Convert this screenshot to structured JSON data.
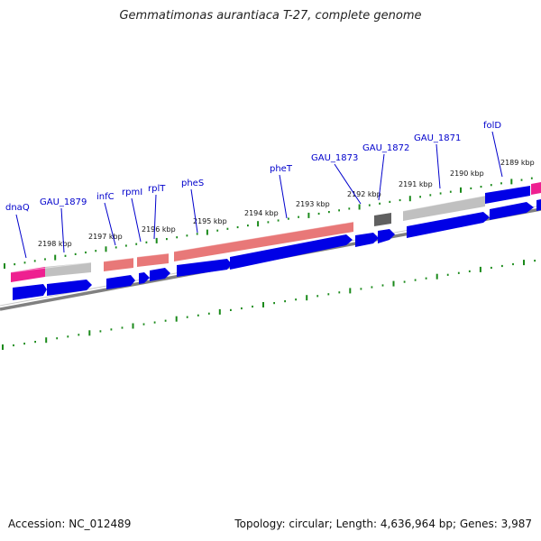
{
  "title": "Gemmatimonas aurantiaca T-27, complete genome",
  "footer": {
    "accession": "Accession: NC_012489",
    "summary": "Topology: circular; Length: 4,636,964 bp; Genes: 3,987"
  },
  "colors": {
    "cds": "#0000e6",
    "rrna": "#e87878",
    "trna": "#ee2090",
    "misc": "#c0c0c0",
    "dark": "#606060",
    "backbone": "#808080",
    "ticks": "#1a8a1a",
    "gene_label": "#0000cc"
  },
  "kbp_labels": [
    "2198 kbp",
    "2197 kbp",
    "2196 kbp",
    "2195 kbp",
    "2194 kbp",
    "2193 kbp",
    "2192 kbp",
    "2191 kbp",
    "2190 kbp",
    "2189 kbp"
  ],
  "gene_labels": [
    "dnaQ",
    "GAU_1879",
    "infC",
    "rpmI",
    "rplT",
    "pheS",
    "pheT",
    "GAU_1873",
    "GAU_1872",
    "GAU_1871",
    "folD"
  ]
}
